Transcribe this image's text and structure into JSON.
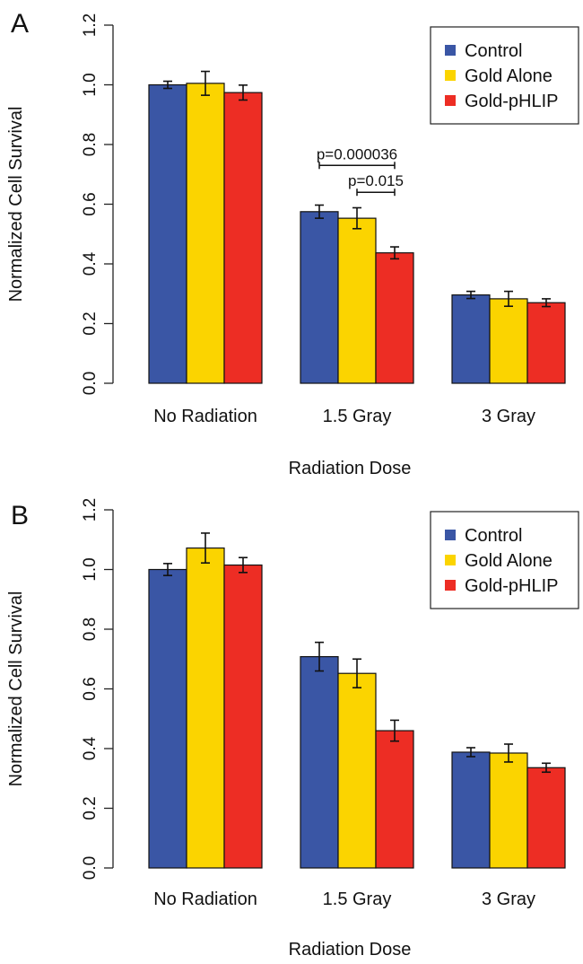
{
  "chart_data": [
    {
      "panel_label": "A",
      "type": "bar",
      "categories": [
        "No Radiation",
        "1.5 Gray",
        "3 Gray"
      ],
      "series": [
        {
          "name": "Control",
          "color": "#3a56a5",
          "values": [
            1.0,
            0.575,
            0.296
          ],
          "errors": [
            0.012,
            0.022,
            0.012
          ]
        },
        {
          "name": "Gold Alone",
          "color": "#fbd400",
          "values": [
            1.005,
            0.553,
            0.283
          ],
          "errors": [
            0.04,
            0.035,
            0.025
          ]
        },
        {
          "name": "Gold-pHLIP",
          "color": "#ed2d24",
          "values": [
            0.974,
            0.437,
            0.27
          ],
          "errors": [
            0.025,
            0.02,
            0.013
          ]
        }
      ],
      "xlabel": "Radiation Dose",
      "ylabel": "Normalized Cell Survival",
      "ylim": [
        0,
        1.2
      ],
      "yticks": [
        "0.0",
        "0.2",
        "0.4",
        "0.6",
        "0.8",
        "1.0",
        "1.2"
      ],
      "legend_position": "top-right",
      "annotations": [
        {
          "text": "p=0.000036",
          "category": "1.5 Gray",
          "from_series": 0,
          "to_series": 2,
          "y": 0.73
        },
        {
          "text": "p=0.015",
          "category": "1.5 Gray",
          "from_series": 1,
          "to_series": 2,
          "y": 0.64
        }
      ]
    },
    {
      "panel_label": "B",
      "type": "bar",
      "categories": [
        "No Radiation",
        "1.5 Gray",
        "3 Gray"
      ],
      "series": [
        {
          "name": "Control",
          "color": "#3a56a5",
          "values": [
            1.0,
            0.708,
            0.388
          ],
          "errors": [
            0.02,
            0.048,
            0.015
          ]
        },
        {
          "name": "Gold Alone",
          "color": "#fbd400",
          "values": [
            1.072,
            0.652,
            0.385
          ],
          "errors": [
            0.05,
            0.048,
            0.03
          ]
        },
        {
          "name": "Gold-pHLIP",
          "color": "#ed2d24",
          "values": [
            1.015,
            0.46,
            0.336
          ],
          "errors": [
            0.025,
            0.035,
            0.015
          ]
        }
      ],
      "xlabel": "Radiation Dose",
      "ylabel": "Normalized Cell Survival",
      "ylim": [
        0,
        1.2
      ],
      "yticks": [
        "0.0",
        "0.2",
        "0.4",
        "0.6",
        "0.8",
        "1.0",
        "1.2"
      ],
      "legend_position": "top-right",
      "annotations": []
    }
  ]
}
